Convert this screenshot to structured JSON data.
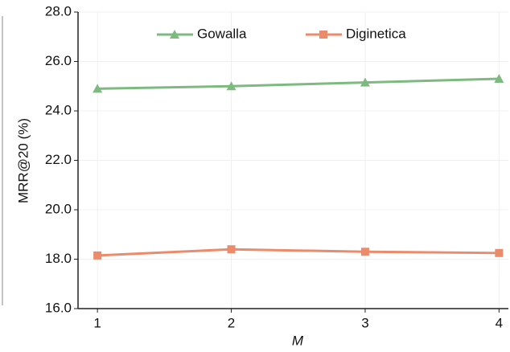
{
  "chart_data": {
    "type": "line",
    "x_label": "M",
    "y_label": "MRR@20 (%)",
    "x": [
      1,
      2,
      3,
      4
    ],
    "series": [
      {
        "name": "Gowalla",
        "color": "#7dba7f",
        "marker": "triangle",
        "values": [
          24.9,
          25.0,
          25.15,
          25.3
        ]
      },
      {
        "name": "Diginetica",
        "color": "#ec8b6b",
        "marker": "square",
        "values": [
          18.15,
          18.4,
          18.3,
          18.25
        ]
      }
    ],
    "xlim": [
      0.855,
      4.07
    ],
    "ylim": [
      16,
      28
    ],
    "xticks": [
      1,
      2,
      3,
      4
    ],
    "yticks": [
      {
        "value": 16,
        "label": "16.0"
      },
      {
        "value": 18,
        "label": "18.0"
      },
      {
        "value": 20,
        "label": "20.0"
      },
      {
        "value": 22,
        "label": "22.0"
      },
      {
        "value": 24,
        "label": "24.0"
      },
      {
        "value": 26,
        "label": "26.0"
      },
      {
        "value": 28,
        "label": "28.0"
      }
    ],
    "grid": true,
    "legend": "top"
  }
}
